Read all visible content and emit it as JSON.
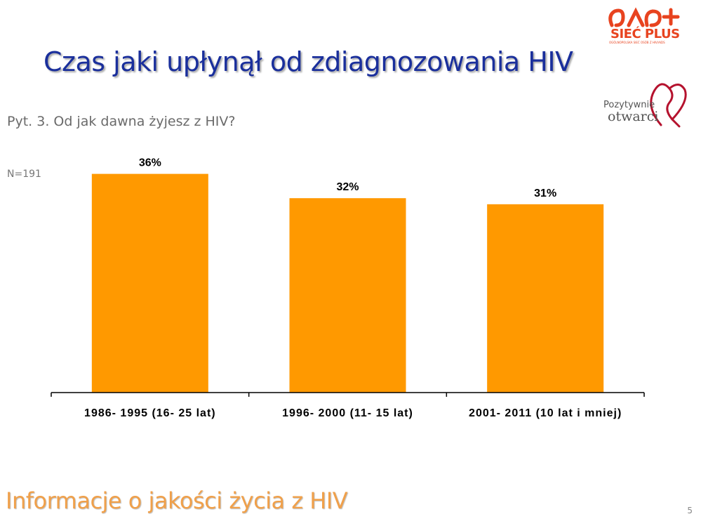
{
  "slide": {
    "title": "Czas jaki upłynął od zdiagnozowania HIV",
    "question": "Pyt. 3. Od jak dawna żyjesz z HIV?",
    "sample_size": "N=191",
    "footer": "Informacje o jakości życia z HIV",
    "page_number": "5"
  },
  "logos": {
    "siec_plus": {
      "name": "SIEĆ PLUS",
      "subtitle": "OGÓLNOPOLSKA SIEĆ OSÓB Z HIV/AIDS",
      "color": "#e8431f"
    },
    "pozytywnie_otwarci": {
      "line1": "Pozytywnie",
      "line2": "otwarci",
      "heart_color": "#b5122e"
    }
  },
  "chart_data": {
    "type": "bar",
    "categories": [
      "1986- 1995 (16- 25 lat)",
      "1996- 2000 (11- 15 lat)",
      "2001- 2011 (10 lat i mniej)"
    ],
    "values": [
      36,
      32,
      31
    ],
    "data_labels": [
      "36%",
      "32%",
      "31%"
    ],
    "unit": "%",
    "ylim": [
      0,
      40
    ],
    "bar_color": "#ff9900",
    "grid": false,
    "legend": "none"
  }
}
